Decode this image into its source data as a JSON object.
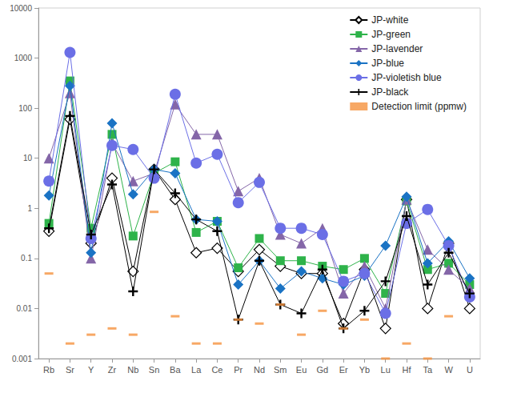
{
  "chart_data": {
    "type": "line",
    "categories": [
      "Rb",
      "Sr",
      "Y",
      "Zr",
      "Nb",
      "Sn",
      "Ba",
      "La",
      "Ce",
      "Pr",
      "Nd",
      "Sm",
      "Eu",
      "Gd",
      "Er",
      "Yb",
      "Lu",
      "Hf",
      "Ta",
      "W",
      "U"
    ],
    "log": "y",
    "ylim": [
      0.001,
      10000
    ],
    "yticks": [
      0.001,
      0.01,
      0.1,
      1,
      10,
      100,
      1000,
      10000
    ],
    "grid": false,
    "legend": "top-right",
    "series": [
      {
        "name": "JP-white",
        "color": "#000000",
        "marker": "diamond",
        "line_style": "solid",
        "values": [
          0.35,
          60,
          0.2,
          4,
          0.055,
          6,
          1.5,
          0.13,
          0.16,
          0.055,
          0.15,
          0.07,
          0.05,
          0.05,
          0.005,
          0.06,
          0.004,
          1.5,
          0.01,
          0.2,
          0.01
        ]
      },
      {
        "name": "JP-green",
        "color": "#2eb34a",
        "marker": "square",
        "line_style": "solid",
        "values": [
          0.5,
          350,
          0.4,
          30,
          0.28,
          5,
          8.5,
          0.33,
          0.55,
          0.065,
          0.25,
          0.09,
          0.09,
          0.07,
          0.06,
          0.1,
          0.02,
          1.4,
          0.06,
          0.08,
          0.03
        ]
      },
      {
        "name": "JP-lavender",
        "color": "#8466a8",
        "marker": "triangle",
        "line_style": "solid",
        "values": [
          10,
          200,
          0.1,
          20,
          3.5,
          5,
          120,
          30,
          30,
          2.2,
          4,
          0.3,
          0.2,
          0.4,
          0.02,
          0.07,
          0.01,
          1.5,
          0.15,
          0.06,
          0.025
        ]
      },
      {
        "name": "JP-blue",
        "color": "#1a73c4",
        "marker": "diamond",
        "line_style": "solid",
        "values": [
          1.8,
          280,
          0.13,
          50,
          1.9,
          6,
          5,
          0.6,
          0.55,
          0.03,
          0.09,
          0.025,
          0.055,
          0.04,
          0.03,
          0.045,
          0.18,
          1.7,
          0.08,
          0.22,
          0.04
        ]
      },
      {
        "name": "JP-violetish blue",
        "color": "#6b6fe6",
        "marker": "circle",
        "line_style": "solid",
        "values": [
          3.5,
          1300,
          0.25,
          18,
          15,
          4,
          190,
          8,
          12,
          1.3,
          3.3,
          0.4,
          0.4,
          0.3,
          0.035,
          0.05,
          0.008,
          0.5,
          0.95,
          0.18,
          0.017
        ]
      },
      {
        "name": "JP-black",
        "color": "#000000",
        "marker": "plus",
        "line_style": "solid",
        "values": [
          0.4,
          70,
          0.3,
          3,
          0.022,
          6,
          2,
          0.6,
          0.35,
          0.006,
          0.09,
          0.012,
          0.008,
          0.06,
          0.004,
          0.009,
          0.035,
          0.7,
          0.03,
          0.13,
          0.02
        ]
      },
      {
        "name": "Detection limit (ppmw)",
        "color": "#f5923e",
        "marker": "dash",
        "type": "scatter",
        "line_style": "none",
        "values": [
          0.05,
          0.002,
          0.003,
          0.004,
          0.003,
          0.85,
          0.007,
          0.002,
          0.002,
          0.006,
          0.005,
          0.012,
          0.003,
          0.009,
          0.004,
          0.006,
          0.001,
          0.002,
          0.001,
          0.007,
          null
        ]
      }
    ]
  }
}
